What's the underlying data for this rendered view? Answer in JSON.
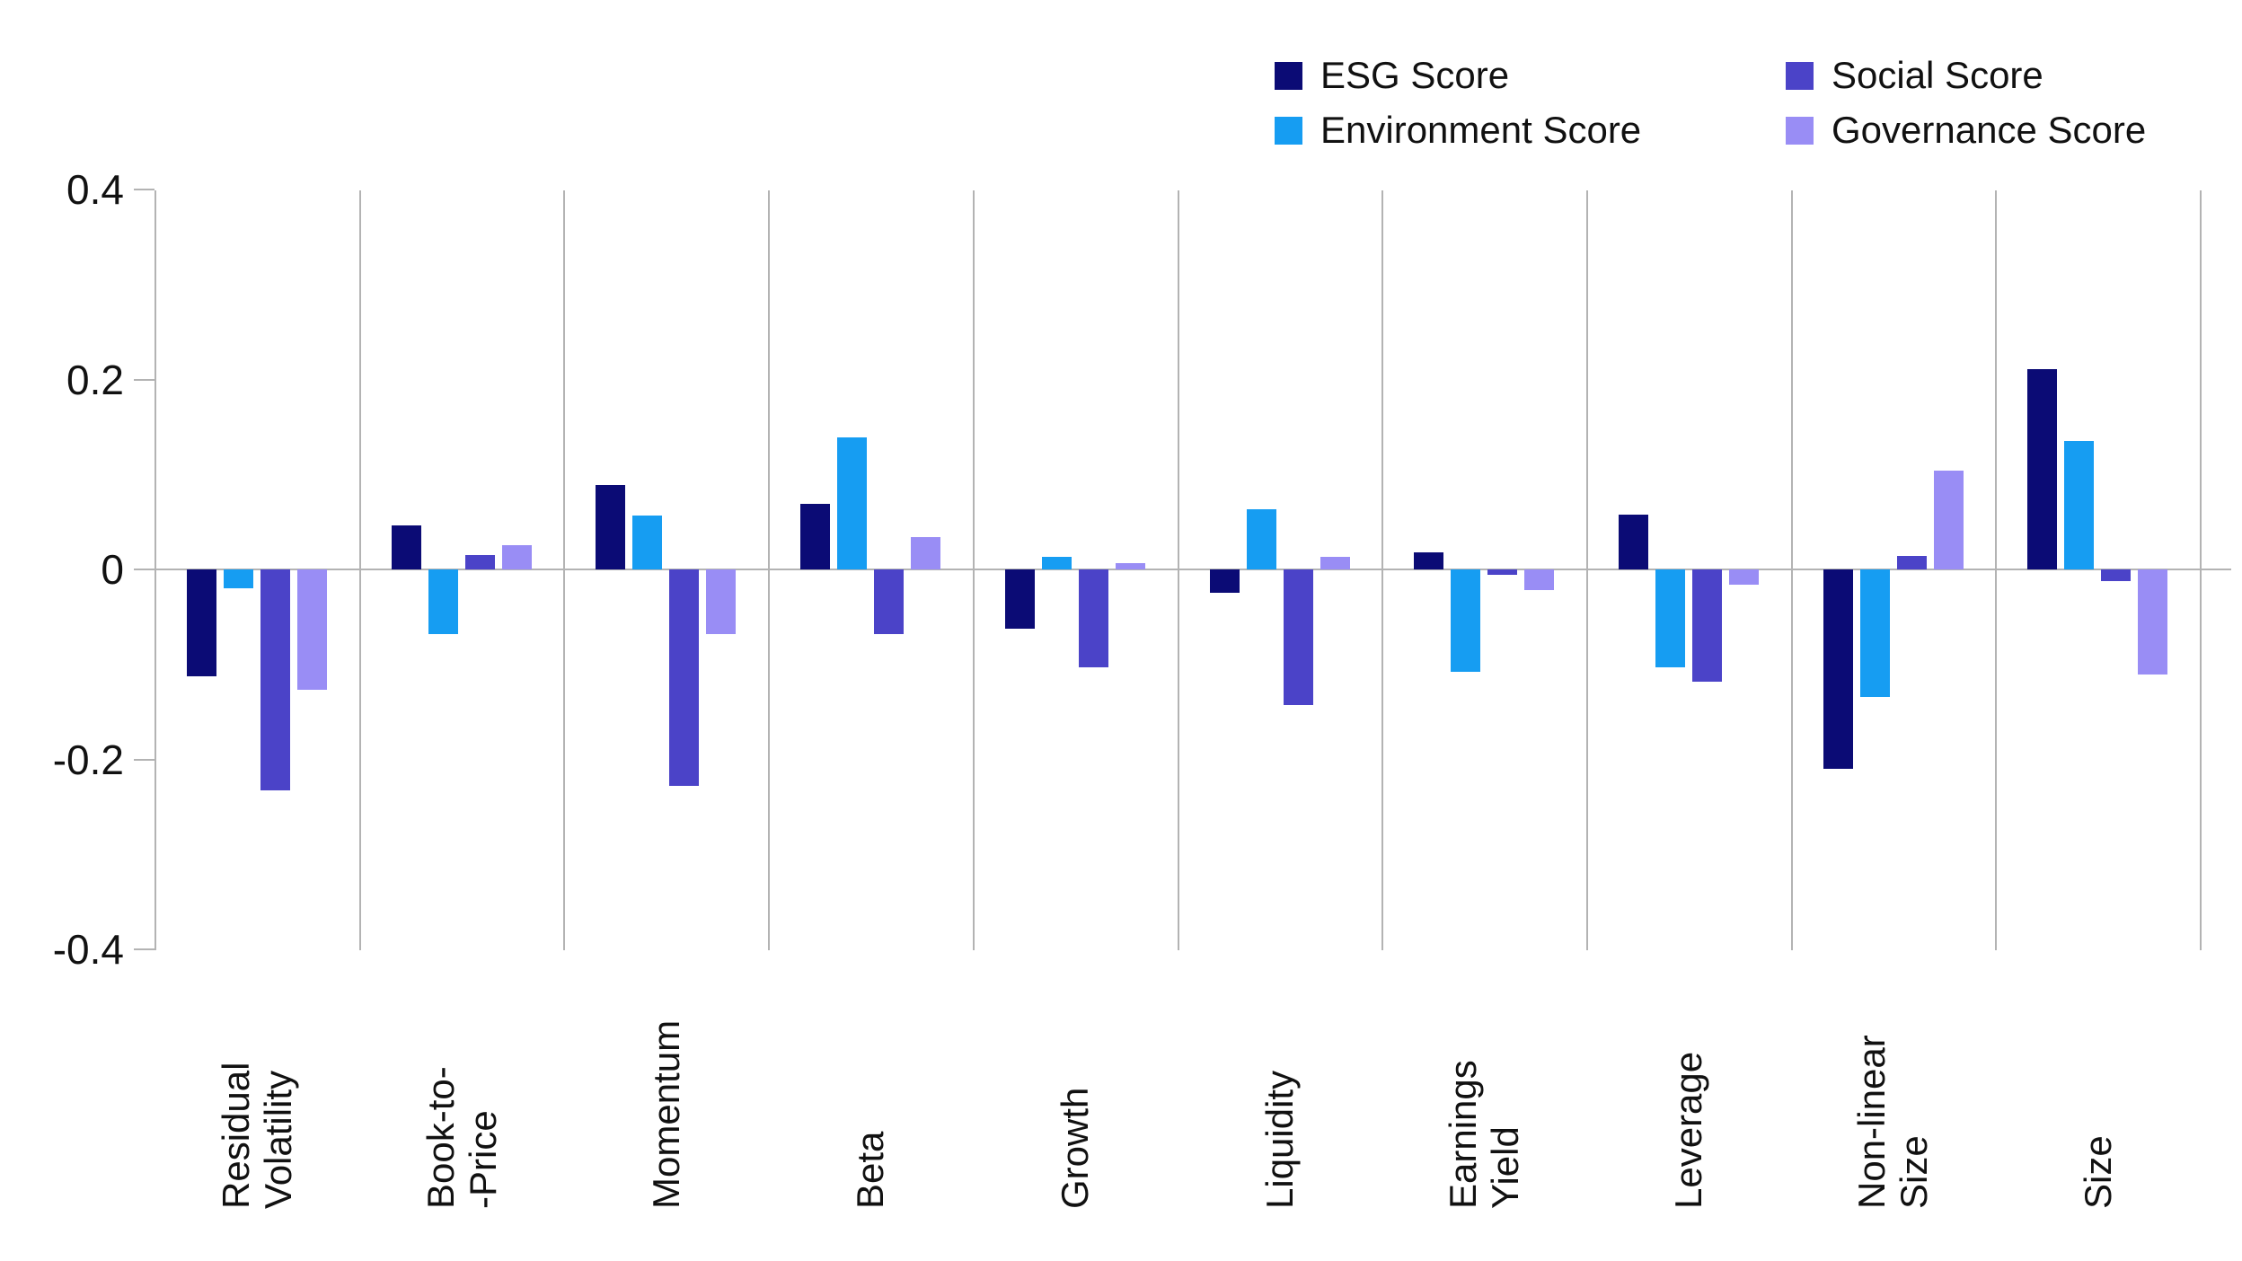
{
  "chart_data": {
    "type": "bar",
    "title": "",
    "xlabel": "",
    "ylabel": "",
    "ylim": [
      -0.4,
      0.4
    ],
    "grid": "vertical category separators only, no horizontal gridlines",
    "legend_position": "top-right, two columns",
    "ytick_labels": [
      "0.4",
      "0.2",
      "0",
      "-0.2",
      "-0.4"
    ],
    "ytick_values": [
      0.4,
      0.2,
      0,
      -0.2,
      -0.4
    ],
    "categories": [
      [
        "Residual",
        "Volatility"
      ],
      [
        "Book-to-",
        "-Price"
      ],
      [
        "Momentum"
      ],
      [
        "Beta"
      ],
      [
        "Growth"
      ],
      [
        "Liquidity"
      ],
      [
        "Earnings",
        "Yield"
      ],
      [
        "Leverage"
      ],
      [
        "Non-linear",
        "Size"
      ],
      [
        "Size"
      ]
    ],
    "series": [
      {
        "name": "ESG Score",
        "color": "#0b0b75",
        "values": [
          -0.113,
          0.046,
          0.089,
          0.069,
          -0.062,
          -0.025,
          0.018,
          0.058,
          -0.21,
          0.211
        ]
      },
      {
        "name": "Environment Score",
        "color": "#169df2",
        "values": [
          -0.02,
          -0.068,
          0.057,
          0.139,
          0.013,
          0.063,
          -0.108,
          -0.103,
          -0.134,
          0.135
        ]
      },
      {
        "name": "Social Score",
        "color": "#4b43c8",
        "values": [
          -0.233,
          0.015,
          -0.228,
          -0.068,
          -0.103,
          -0.143,
          -0.006,
          -0.118,
          0.014,
          -0.012
        ]
      },
      {
        "name": "Governance Score",
        "color": "#998df5",
        "values": [
          -0.127,
          0.026,
          -0.068,
          0.034,
          0.007,
          0.013,
          -0.022,
          -0.016,
          0.104,
          -0.111
        ]
      }
    ],
    "colors": {
      "axis_gray": "#b3b3b3",
      "text": "#111111",
      "background": "#ffffff"
    }
  }
}
